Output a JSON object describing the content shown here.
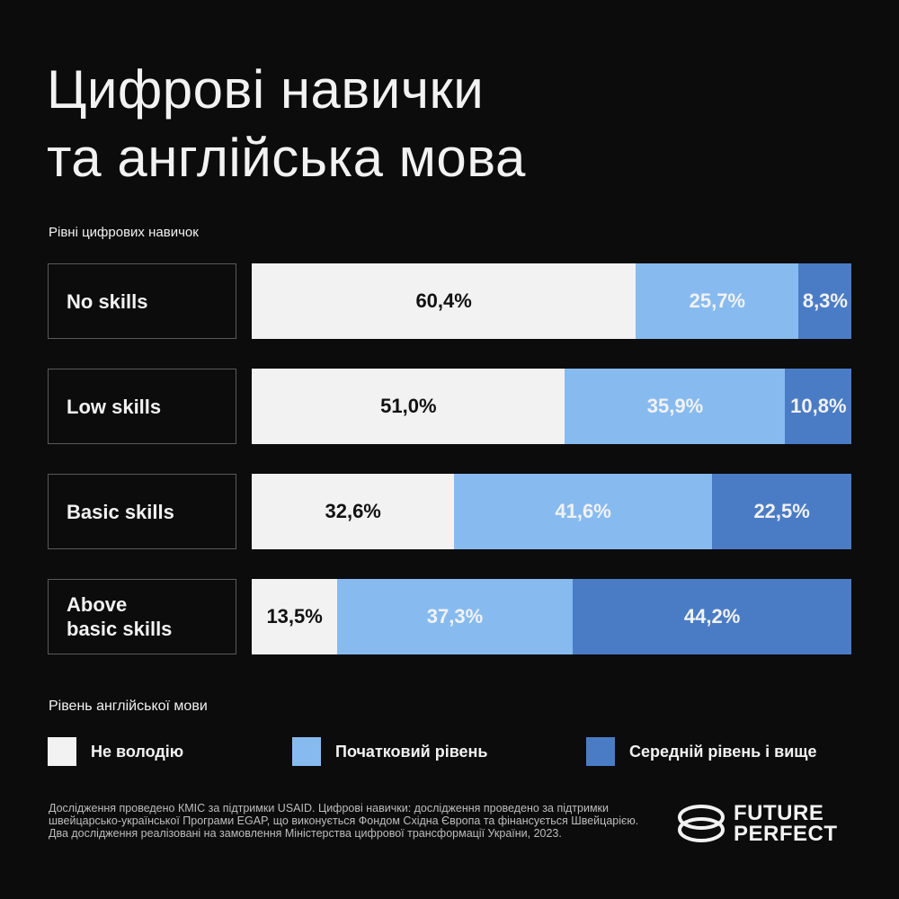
{
  "title": [
    "Цифрові навички",
    "та англійська мова"
  ],
  "chart_data": {
    "type": "bar",
    "orientation": "horizontal-stacked",
    "title": "Рівні цифрових навичок",
    "categories": [
      "No skills",
      "Low skills",
      "Basic skills",
      "Above basic skills"
    ],
    "category_lines": [
      [
        "No skills"
      ],
      [
        "Low skills"
      ],
      [
        "Basic skills"
      ],
      [
        "Above",
        "basic skills"
      ]
    ],
    "legend_title": "Рівень англійської мови",
    "series": [
      {
        "name": "Не володію",
        "color": "#f2f2f2",
        "text_color": "#111111",
        "values": [
          60.4,
          51.0,
          32.6,
          13.5
        ],
        "labels": [
          "60,4%",
          "51,0%",
          "32,6%",
          "13,5%"
        ]
      },
      {
        "name": "Початковий рівень",
        "color": "#87bbf0",
        "text_color": "#f2f2f2",
        "values": [
          25.7,
          35.9,
          41.6,
          37.3
        ],
        "labels": [
          "25,7%",
          "35,9%",
          "41,6%",
          "37,3%"
        ]
      },
      {
        "name": "Середній рівень і вище",
        "color": "#4a7cc6",
        "text_color": "#f2f2f2",
        "values": [
          8.3,
          10.8,
          22.5,
          44.2
        ],
        "labels": [
          "8,3%",
          "10,8%",
          "22,5%",
          "44,2%"
        ]
      }
    ]
  },
  "footer": "Дослідження  проведено КМІС за підтримки USAID. Цифрові навички: дослідження проведено за підтримки швейцарсько-української Програми EGAP, що виконується Фондом Східна Європа та фінансується Швейцарією. Два дослідження реалізовані на замовлення Міністерства цифрової трансформації України, 2023.",
  "logo": {
    "line1": "FUTURE",
    "line2": "PERFECT"
  }
}
